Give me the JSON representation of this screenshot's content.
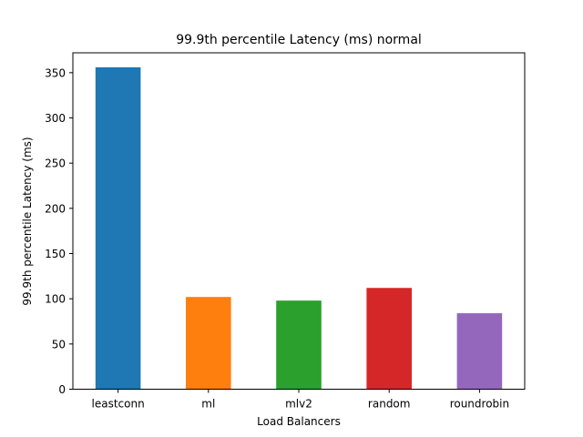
{
  "chart_data": {
    "type": "bar",
    "title": "99.9th percentile Latency (ms) normal",
    "xlabel": "Load Balancers",
    "ylabel": "99.9th percentile Latency (ms)",
    "categories": [
      "leastconn",
      "ml",
      "mlv2",
      "random",
      "roundrobin"
    ],
    "values": [
      356,
      102,
      98,
      112,
      84
    ],
    "colors": [
      "#1f77b4",
      "#ff7f0e",
      "#2ca02c",
      "#d62728",
      "#9467bd"
    ],
    "ylim": [
      0,
      372
    ],
    "yticks": [
      0,
      50,
      100,
      150,
      200,
      250,
      300,
      350
    ],
    "grid": false,
    "legend": "none"
  }
}
